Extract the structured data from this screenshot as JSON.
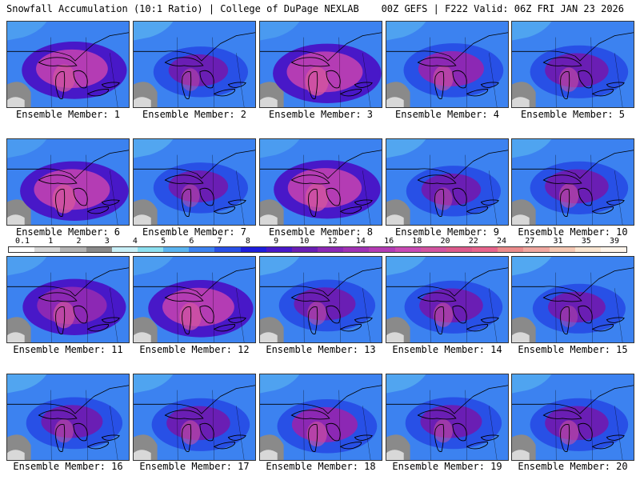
{
  "header": {
    "title": "Snowfall Accumulation (10:1 Ratio) | College of DuPage NEXLAB",
    "run_info": "00Z GEFS | F222 Valid: 06Z FRI JAN 23 2026"
  },
  "members": [
    {
      "label": "Ensemble Member: 1",
      "intensity": 0.75
    },
    {
      "label": "Ensemble Member: 2",
      "intensity": 0.45
    },
    {
      "label": "Ensemble Member: 3",
      "intensity": 0.85
    },
    {
      "label": "Ensemble Member: 4",
      "intensity": 0.6
    },
    {
      "label": "Ensemble Member: 5",
      "intensity": 0.55
    },
    {
      "label": "Ensemble Member: 6",
      "intensity": 0.85
    },
    {
      "label": "Ensemble Member: 7",
      "intensity": 0.45
    },
    {
      "label": "Ensemble Member: 8",
      "intensity": 0.8
    },
    {
      "label": "Ensemble Member: 9",
      "intensity": 0.45
    },
    {
      "label": "Ensemble Member: 10",
      "intensity": 0.55
    },
    {
      "label": "Ensemble Member: 11",
      "intensity": 0.7
    },
    {
      "label": "Ensemble Member: 12",
      "intensity": 0.75
    },
    {
      "label": "Ensemble Member: 13",
      "intensity": 0.5
    },
    {
      "label": "Ensemble Member: 14",
      "intensity": 0.55
    },
    {
      "label": "Ensemble Member: 15",
      "intensity": 0.4
    },
    {
      "label": "Ensemble Member: 16",
      "intensity": 0.5
    },
    {
      "label": "Ensemble Member: 17",
      "intensity": 0.55
    },
    {
      "label": "Ensemble Member: 18",
      "intensity": 0.6
    },
    {
      "label": "Ensemble Member: 19",
      "intensity": 0.5
    },
    {
      "label": "Ensemble Member: 20",
      "intensity": 0.55
    }
  ],
  "colorbar": {
    "labels": [
      "0.1",
      "1",
      "2",
      "3",
      "4",
      "5",
      "6",
      "7",
      "8",
      "9",
      "10",
      "12",
      "14",
      "16",
      "18",
      "20",
      "22",
      "24",
      "27",
      "31",
      "35",
      "39"
    ],
    "colors": [
      "#ffffff",
      "#d8d8d8",
      "#b4b4b4",
      "#8a8a8a",
      "#c8f0f8",
      "#8ce0f0",
      "#5ab4f0",
      "#3c82f0",
      "#2850e6",
      "#1e1edc",
      "#4818c8",
      "#6a1eb4",
      "#8c28b4",
      "#a032b4",
      "#b43cb4",
      "#c84ab4",
      "#d254a0",
      "#dc5a8c",
      "#e6648c",
      "#eb8c8c",
      "#f0a8a0",
      "#f5c8b4",
      "#fae6d2",
      "#fff5eb"
    ]
  }
}
